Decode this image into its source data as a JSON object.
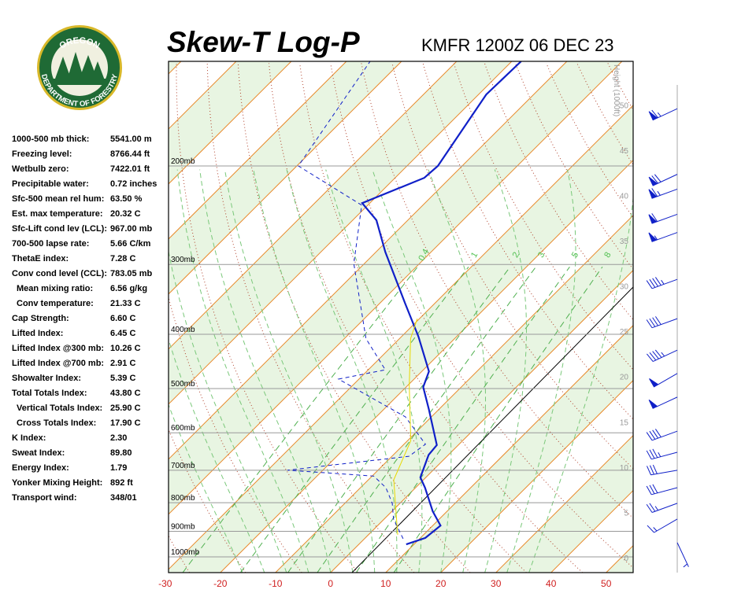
{
  "header": {
    "title": "Skew-T Log-P",
    "station": "KMFR 1200Z 06 DEC 23",
    "logo_top": "OREGON",
    "logo_bottom": "DEPARTMENT OF FORESTRY"
  },
  "stats": [
    [
      "1000-500 mb thick:",
      "5541.00 m"
    ],
    [
      "Freezing level:",
      "8766.44 ft"
    ],
    [
      "Wetbulb zero:",
      "7422.01 ft"
    ],
    [
      "Precipitable water:",
      "0.72 inches"
    ],
    [
      "Sfc-500 mean rel hum:",
      "63.50 %"
    ],
    [
      "Est. max temperature:",
      "20.32 C"
    ],
    [
      "Sfc-Lift cond lev (LCL):",
      "967.00 mb"
    ],
    [
      "700-500 lapse rate:",
      "5.66 C/km"
    ],
    [
      "ThetaE index:",
      "7.28 C"
    ],
    [
      "Conv cond level (CCL):",
      "783.05 mb"
    ],
    [
      "Mean mixing ratio:",
      "6.56 g/kg"
    ],
    [
      "Conv temperature:",
      "21.33 C"
    ],
    [
      "Cap Strength:",
      "6.60 C"
    ],
    [
      "Lifted Index:",
      "6.45 C"
    ],
    [
      "Lifted Index @300 mb:",
      "10.26 C"
    ],
    [
      "Lifted Index @700 mb:",
      "2.91 C"
    ],
    [
      "Showalter Index:",
      "5.39 C"
    ],
    [
      "Total Totals Index:",
      "43.80 C"
    ],
    [
      "Vertical Totals Index:",
      "25.90 C"
    ],
    [
      "Cross Totals Index:",
      "17.90 C"
    ],
    [
      "K Index:",
      "2.30"
    ],
    [
      "Sweat Index:",
      "89.80"
    ],
    [
      "Energy Index:",
      "1.79"
    ],
    [
      "Yonker Mixing Height:",
      "892 ft"
    ],
    [
      "Transport wind:",
      "348/01"
    ]
  ],
  "chart_data": {
    "type": "skewt",
    "xlim": [
      -29.4,
      54.9
    ],
    "xticks": [
      -30,
      -20,
      -10,
      0,
      10,
      20,
      30,
      40,
      50
    ],
    "ylim": [
      1067,
      130
    ],
    "log_y": true,
    "yticks": [
      {
        "value": 1000,
        "label": "1000mb"
      },
      {
        "value": 900,
        "label": "900mb"
      },
      {
        "value": 800,
        "label": "800mb"
      },
      {
        "value": 700,
        "label": "700mb"
      },
      {
        "value": 600,
        "label": "600mb"
      },
      {
        "value": 500,
        "label": "500mb"
      },
      {
        "value": 400,
        "label": "400mb"
      },
      {
        "value": 300,
        "label": "300mb"
      },
      {
        "value": 200,
        "label": "200mb"
      }
    ],
    "height_label": "Height (1000ft)",
    "height_lim": [
      -1.65,
      54.8
    ],
    "height_ticks": [
      0,
      5,
      10,
      15,
      20,
      25,
      30,
      35,
      40,
      45,
      50
    ],
    "mixing_ratio_labels": [
      {
        "value": 0.4,
        "label": "0.4"
      },
      1,
      2,
      3,
      5,
      8
    ],
    "series": [
      {
        "color": "#1020c8",
        "style": "solid",
        "pressure": [
          950,
          925,
          879,
          829,
          752,
          721,
          657,
          631,
          544,
          497,
          466,
          404,
          352,
          285,
          250,
          233,
          210,
          200,
          149,
          130
        ],
        "values": [
          8.6,
          10.9,
          11.4,
          7.4,
          1.7,
          -1.0,
          -3.6,
          -3.9,
          -11.9,
          -16.9,
          -18.7,
          -26.9,
          -35.4,
          -48.3,
          -55.7,
          -61.4,
          -54.7,
          -54.4,
          -58.6,
          -58.3
        ]
      },
      {
        "color": "#1020c8",
        "style": "dashed",
        "pressure": [
          928,
          856,
          802,
          752,
          717,
          700,
          661,
          629,
          562,
          481,
          463,
          407,
          299,
          235,
          200,
          130
        ],
        "values": [
          7.0,
          1.7,
          -1.4,
          -5.4,
          -9.7,
          -26.4,
          -6.9,
          -6.1,
          -14.7,
          -33.7,
          -26.9,
          -36.1,
          -51.9,
          -61.1,
          -79.7,
          -85.7
        ]
      },
      {
        "color": "#e8d800",
        "style": "thin",
        "pressure": [
          913,
          728,
          620,
          494,
          407,
          375
        ],
        "values": [
          5.3,
          -5.4,
          -9.4,
          -19.7,
          -28,
          -30.4
        ]
      }
    ],
    "winds": {
      "color": "#1020c8",
      "pressure": [
        158,
        207,
        220,
        244,
        263,
        319,
        375,
        427,
        470,
        518,
        596,
        650,
        700,
        752,
        802,
        856,
        943
      ],
      "direction": [
        245,
        245,
        250,
        250,
        250,
        250,
        250,
        245,
        240,
        245,
        250,
        255,
        260,
        255,
        250,
        240,
        155
      ],
      "speed": [
        65,
        70,
        65,
        60,
        55,
        45,
        40,
        45,
        50,
        50,
        40,
        35,
        30,
        30,
        25,
        15,
        5
      ]
    }
  }
}
